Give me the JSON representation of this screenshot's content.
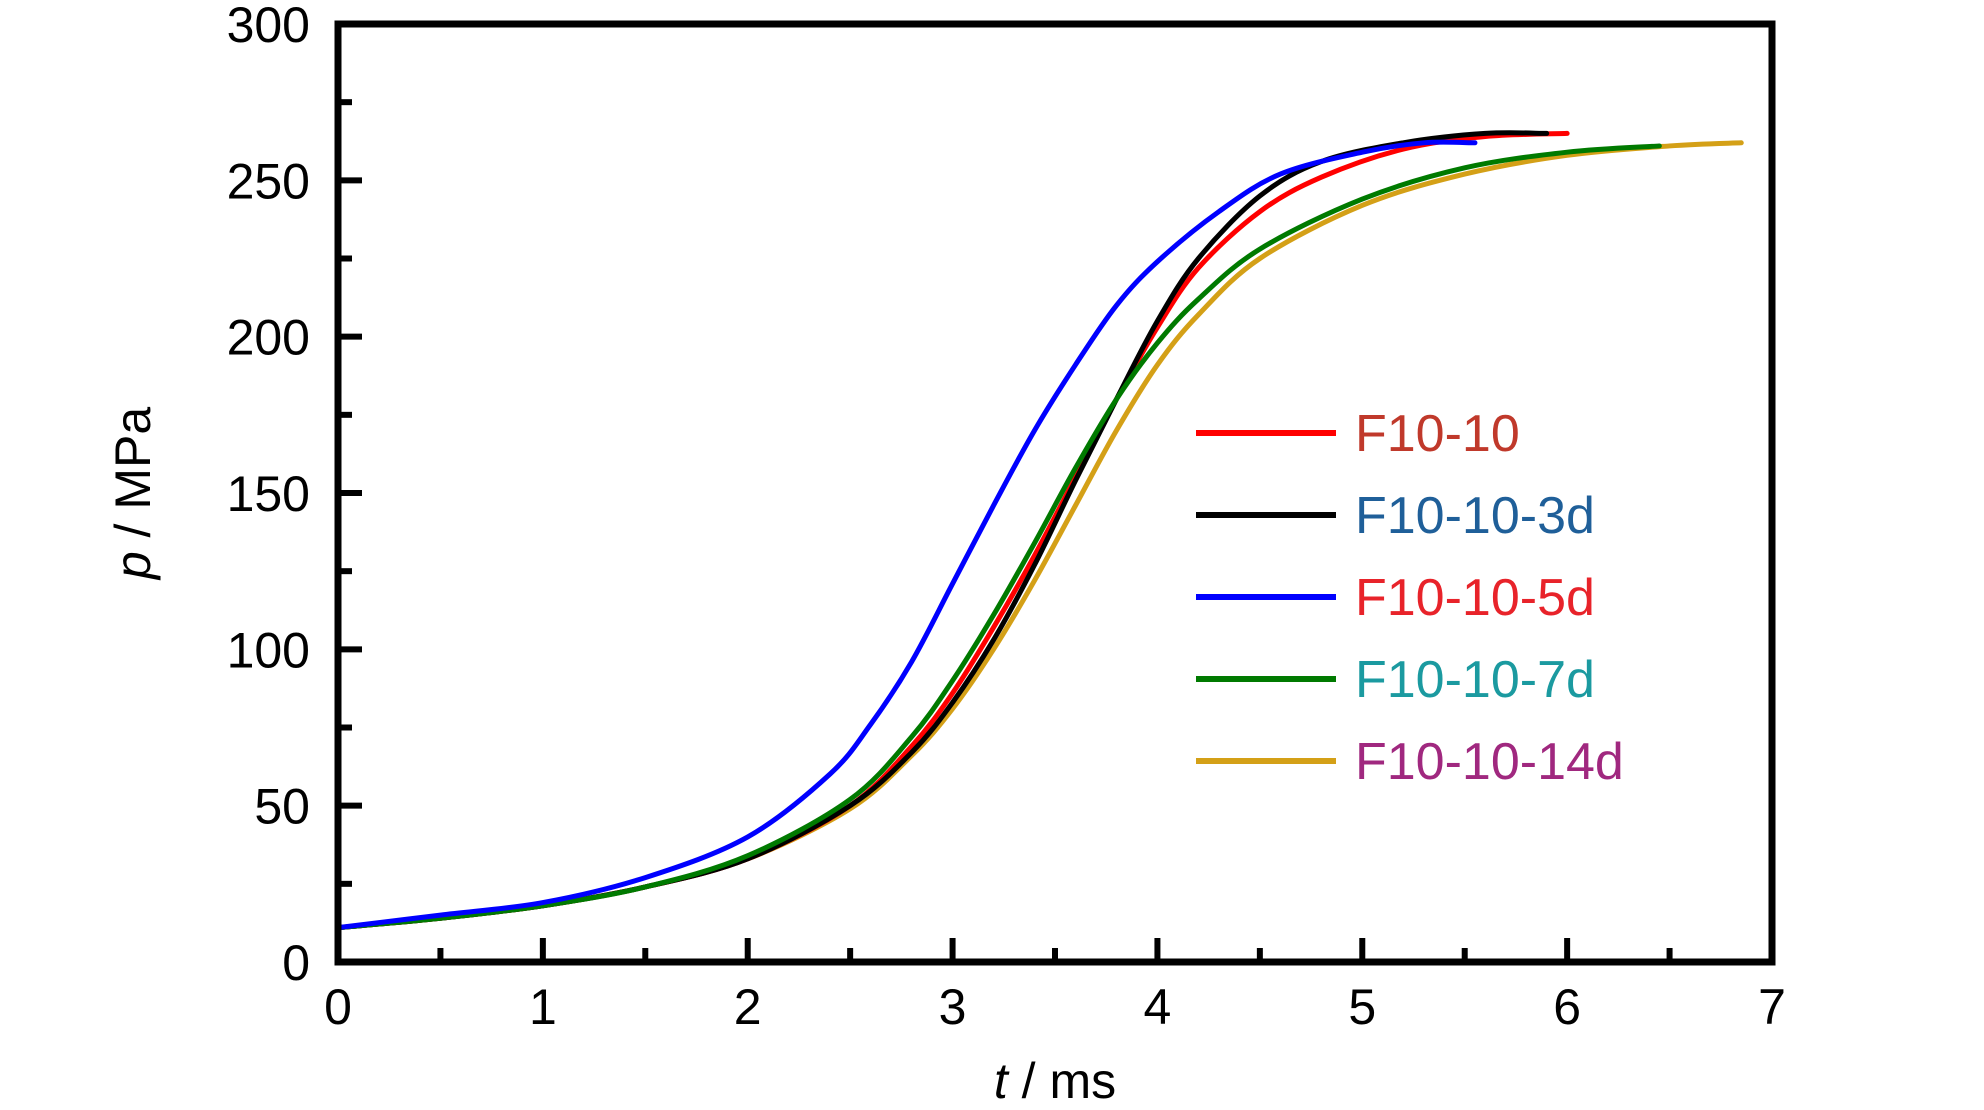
{
  "chart_data": {
    "type": "line",
    "xlabel_var": "t",
    "xlabel_unit": " / ms",
    "ylabel_var": "p",
    "ylabel_unit": " / MPa",
    "xlim": [
      0,
      7
    ],
    "ylim": [
      0,
      300
    ],
    "xticks": [
      0,
      1,
      2,
      3,
      4,
      5,
      6,
      7
    ],
    "yticks": [
      0,
      50,
      100,
      150,
      200,
      250,
      300
    ],
    "x_minor_step": 0.5,
    "y_minor_step": 25,
    "grid": false,
    "legend_position": "center-right",
    "series": [
      {
        "name": "F10-10",
        "line_color": "#ff0000",
        "label_color": "#c0392b",
        "points": [
          [
            0,
            11
          ],
          [
            0.5,
            14
          ],
          [
            1,
            18
          ],
          [
            1.5,
            24
          ],
          [
            2,
            33
          ],
          [
            2.5,
            50
          ],
          [
            2.8,
            69
          ],
          [
            3,
            86
          ],
          [
            3.2,
            107
          ],
          [
            3.4,
            130
          ],
          [
            3.6,
            155
          ],
          [
            3.8,
            180
          ],
          [
            4,
            203
          ],
          [
            4.2,
            222
          ],
          [
            4.5,
            240
          ],
          [
            4.8,
            251
          ],
          [
            5.2,
            260
          ],
          [
            5.6,
            264
          ],
          [
            6,
            265
          ]
        ]
      },
      {
        "name": "F10-10-3d",
        "line_color": "#000000",
        "label_color": "#1f5f99",
        "points": [
          [
            0,
            11
          ],
          [
            0.5,
            14
          ],
          [
            1,
            18
          ],
          [
            1.5,
            24
          ],
          [
            2,
            33
          ],
          [
            2.5,
            50
          ],
          [
            2.8,
            67
          ],
          [
            3,
            83
          ],
          [
            3.2,
            103
          ],
          [
            3.4,
            127
          ],
          [
            3.6,
            154
          ],
          [
            3.8,
            180
          ],
          [
            4,
            205
          ],
          [
            4.2,
            225
          ],
          [
            4.5,
            245
          ],
          [
            4.8,
            256
          ],
          [
            5.2,
            262
          ],
          [
            5.6,
            265
          ],
          [
            5.9,
            265
          ]
        ]
      },
      {
        "name": "F10-10-5d",
        "line_color": "#0000ff",
        "label_color": "#e8232a",
        "points": [
          [
            0,
            11
          ],
          [
            0.5,
            15
          ],
          [
            1,
            19
          ],
          [
            1.5,
            27
          ],
          [
            2,
            40
          ],
          [
            2.4,
            60
          ],
          [
            2.6,
            76
          ],
          [
            2.8,
            96
          ],
          [
            3,
            121
          ],
          [
            3.2,
            146
          ],
          [
            3.4,
            170
          ],
          [
            3.6,
            191
          ],
          [
            3.8,
            210
          ],
          [
            4,
            224
          ],
          [
            4.3,
            240
          ],
          [
            4.6,
            252
          ],
          [
            5,
            259
          ],
          [
            5.3,
            262
          ],
          [
            5.55,
            262
          ]
        ]
      },
      {
        "name": "F10-10-7d",
        "line_color": "#007a00",
        "label_color": "#1b9aa0",
        "points": [
          [
            0,
            11
          ],
          [
            0.5,
            14
          ],
          [
            1,
            18
          ],
          [
            1.5,
            24
          ],
          [
            2,
            34
          ],
          [
            2.5,
            52
          ],
          [
            2.8,
            72
          ],
          [
            3,
            90
          ],
          [
            3.2,
            111
          ],
          [
            3.4,
            134
          ],
          [
            3.6,
            158
          ],
          [
            3.8,
            180
          ],
          [
            4,
            198
          ],
          [
            4.2,
            212
          ],
          [
            4.5,
            228
          ],
          [
            5,
            244
          ],
          [
            5.5,
            254
          ],
          [
            6,
            259
          ],
          [
            6.45,
            261
          ]
        ]
      },
      {
        "name": "F10-10-14d",
        "line_color": "#d4a017",
        "label_color": "#a0287f",
        "points": [
          [
            0,
            11
          ],
          [
            0.5,
            14
          ],
          [
            1,
            18
          ],
          [
            1.5,
            24
          ],
          [
            2,
            33
          ],
          [
            2.5,
            49
          ],
          [
            2.8,
            66
          ],
          [
            3,
            81
          ],
          [
            3.2,
            100
          ],
          [
            3.4,
            122
          ],
          [
            3.6,
            146
          ],
          [
            3.8,
            170
          ],
          [
            4,
            191
          ],
          [
            4.2,
            207
          ],
          [
            4.5,
            225
          ],
          [
            5,
            242
          ],
          [
            5.5,
            252
          ],
          [
            6,
            258
          ],
          [
            6.5,
            261
          ],
          [
            6.85,
            262
          ]
        ]
      }
    ]
  }
}
